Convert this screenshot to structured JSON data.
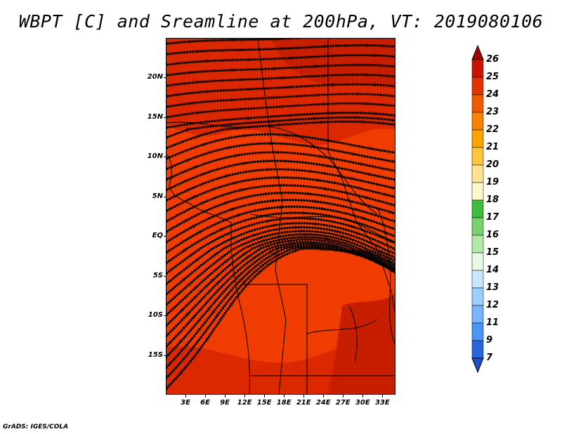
{
  "title": "WBPT [C] and Sreamline at 200hPa, VT: 2019080106",
  "credit": "GrADS: IGES/COLA",
  "lat_labels": [
    "20N",
    "15N",
    "10N",
    "5N",
    "EQ",
    "5S",
    "10S",
    "15S"
  ],
  "lat_values": [
    20,
    15,
    10,
    5,
    0,
    -5,
    -10,
    -15
  ],
  "lon_labels": [
    "3E",
    "6E",
    "9E",
    "12E",
    "15E",
    "18E",
    "21E",
    "24E",
    "27E",
    "30E",
    "33E"
  ],
  "lon_values": [
    3,
    6,
    9,
    12,
    15,
    18,
    21,
    24,
    27,
    30,
    33
  ],
  "map_extent": {
    "lon_min": 0,
    "lon_max": 35,
    "lat_min": -20,
    "lat_max": 25
  },
  "colorbar": {
    "labels": [
      "26",
      "25",
      "24",
      "23",
      "22",
      "21",
      "20",
      "19",
      "18",
      "17",
      "16",
      "15",
      "14",
      "13",
      "12",
      "11",
      "9",
      "7"
    ],
    "colors": [
      "#a50000",
      "#c81400",
      "#e13200",
      "#f05a00",
      "#f98200",
      "#fba600",
      "#fdc63c",
      "#fee191",
      "#fff8c8",
      "#3cbe3c",
      "#78d26e",
      "#b4eaa8",
      "#e6fae6",
      "#c8e6ff",
      "#9ccdff",
      "#78b4ff",
      "#4b96f5",
      "#2864dc",
      "#1e50c8"
    ]
  },
  "field_colors": {
    "main": "#f03c00",
    "darker": "#dc2800",
    "darkest": "#c81e00",
    "lighter": "#f55a14"
  }
}
